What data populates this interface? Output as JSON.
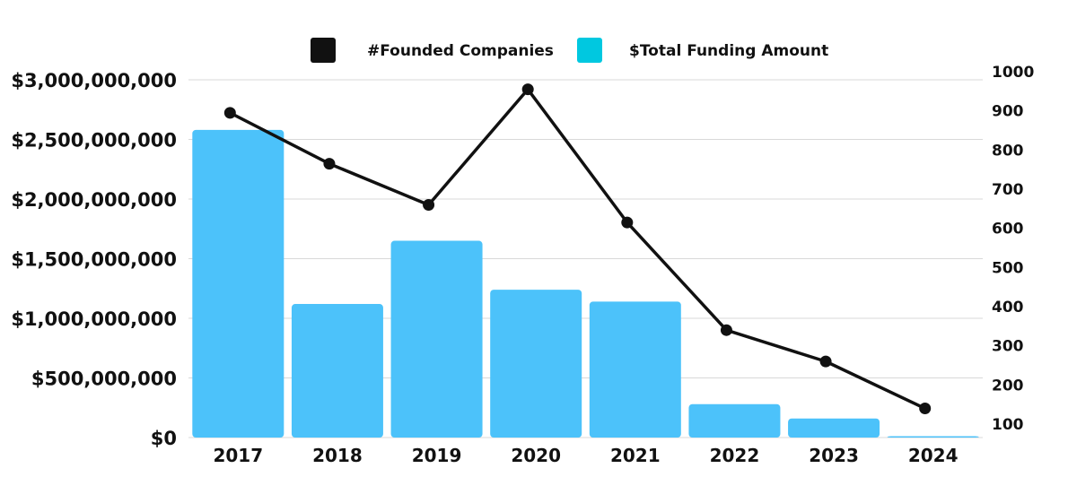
{
  "chart_data": {
    "type": "bar",
    "categories": [
      "2017",
      "2018",
      "2019",
      "2020",
      "2021",
      "2022",
      "2023",
      "2024"
    ],
    "series": [
      {
        "name": "$Total Funding Amount",
        "kind": "bar",
        "axis": "left",
        "color": "#4CC2FA",
        "values": [
          2580000000,
          1120000000,
          1650000000,
          1240000000,
          1140000000,
          280000000,
          160000000,
          5000000
        ]
      },
      {
        "name": "#Founded Companies",
        "kind": "line",
        "axis": "right",
        "color": "#111111",
        "values": [
          895,
          765,
          660,
          955,
          615,
          340,
          260,
          140
        ]
      }
    ],
    "legend": {
      "position": "top-center",
      "items": [
        {
          "label": "#Founded Companies",
          "swatch_color": "#111111"
        },
        {
          "label": "$Total Funding Amount",
          "swatch_color": "#00C8E0"
        }
      ]
    },
    "y_left": {
      "min": 0,
      "max": 3000000000,
      "ticks": [
        {
          "value": 0,
          "label": "$0"
        },
        {
          "value": 500000000,
          "label": "$500,000,000"
        },
        {
          "value": 1000000000,
          "label": "$1,000,000,000"
        },
        {
          "value": 1500000000,
          "label": "$1,500,000,000"
        },
        {
          "value": 2000000000,
          "label": "$2,000,000,000"
        },
        {
          "value": 2500000000,
          "label": "$2,500,000,000"
        },
        {
          "value": 3000000000,
          "label": "$3,000,000,000"
        }
      ]
    },
    "y_right": {
      "min": 100,
      "max": 1000,
      "ticks": [
        {
          "value": 100,
          "label": "100"
        },
        {
          "value": 200,
          "label": "200"
        },
        {
          "value": 300,
          "label": "300"
        },
        {
          "value": 400,
          "label": "400"
        },
        {
          "value": 500,
          "label": "500"
        },
        {
          "value": 600,
          "label": "600"
        },
        {
          "value": 700,
          "label": "700"
        },
        {
          "value": 800,
          "label": "800"
        },
        {
          "value": 900,
          "label": "900"
        },
        {
          "value": 1000,
          "label": "1000"
        }
      ]
    },
    "grid": true,
    "title": "",
    "xlabel": "",
    "ylabel": ""
  }
}
